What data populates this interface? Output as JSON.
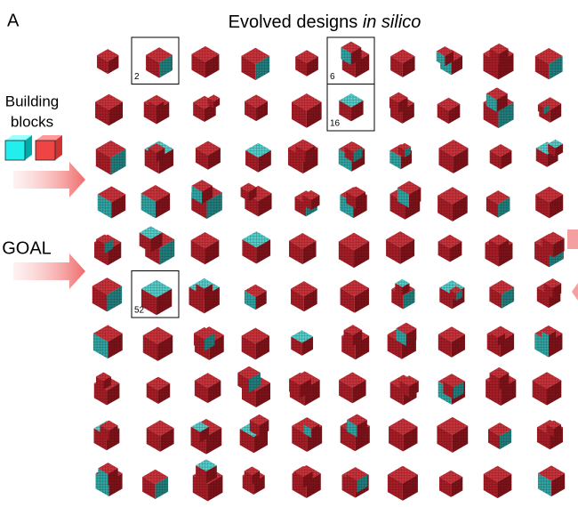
{
  "panel_label": "A",
  "title": {
    "text": "Evolved designs ",
    "italic": "in silico"
  },
  "building_blocks": {
    "lines": [
      "Building",
      "blocks"
    ]
  },
  "goal": "GOAL",
  "highlights": [
    "2",
    "6",
    "16",
    "52"
  ]
}
